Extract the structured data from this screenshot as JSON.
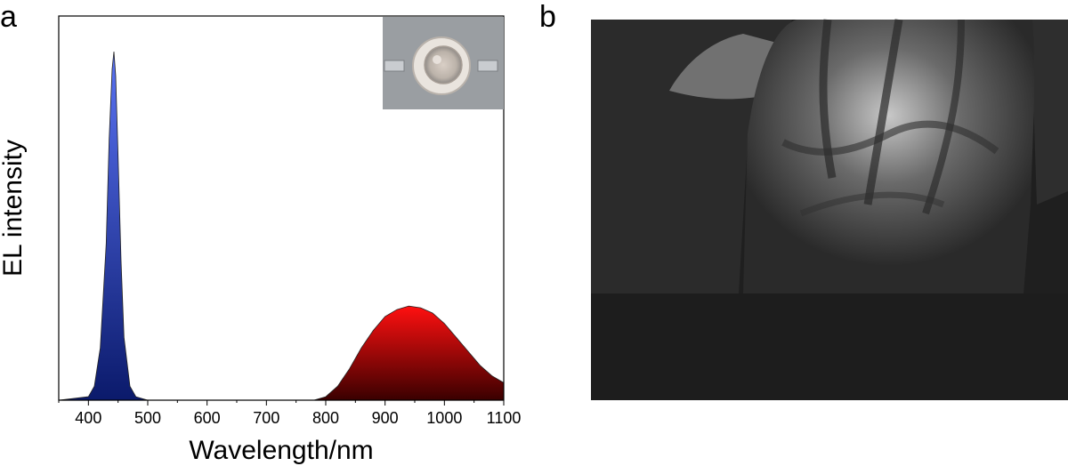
{
  "panels": {
    "a_label": "a",
    "b_label": "b"
  },
  "colors": {
    "blue_peak": "#1e2f9a",
    "red_peak": "#e00000",
    "photo_bg": "#1f1f1f"
  },
  "inset": {
    "description_icon": "led-package-photo-icon"
  },
  "photo": {
    "icon": "hand-vein-infrared-photo-icon"
  },
  "chart_data": {
    "type": "area",
    "title": "",
    "xlabel": "Wavelength/nm",
    "ylabel": "EL intensity",
    "xlim": [
      350,
      1100
    ],
    "ylim": [
      0,
      1
    ],
    "xticks": [
      400,
      500,
      600,
      700,
      800,
      900,
      1000,
      1100
    ],
    "grid": false,
    "series": [
      {
        "color": "#2a3fbf",
        "x": [
          350,
          400,
          410,
          420,
          430,
          435,
          440,
          443,
          446,
          450,
          455,
          460,
          470,
          480,
          500
        ],
        "y": [
          0.0,
          0.01,
          0.04,
          0.15,
          0.45,
          0.75,
          0.95,
          1.0,
          0.93,
          0.7,
          0.4,
          0.18,
          0.04,
          0.01,
          0.0
        ]
      },
      {
        "color": "#e00000",
        "x": [
          780,
          800,
          820,
          840,
          860,
          880,
          900,
          920,
          940,
          960,
          980,
          1000,
          1020,
          1040,
          1060,
          1080,
          1100
        ],
        "y": [
          0.0,
          0.01,
          0.04,
          0.09,
          0.15,
          0.2,
          0.24,
          0.26,
          0.27,
          0.265,
          0.25,
          0.22,
          0.18,
          0.14,
          0.1,
          0.07,
          0.05
        ]
      }
    ]
  }
}
